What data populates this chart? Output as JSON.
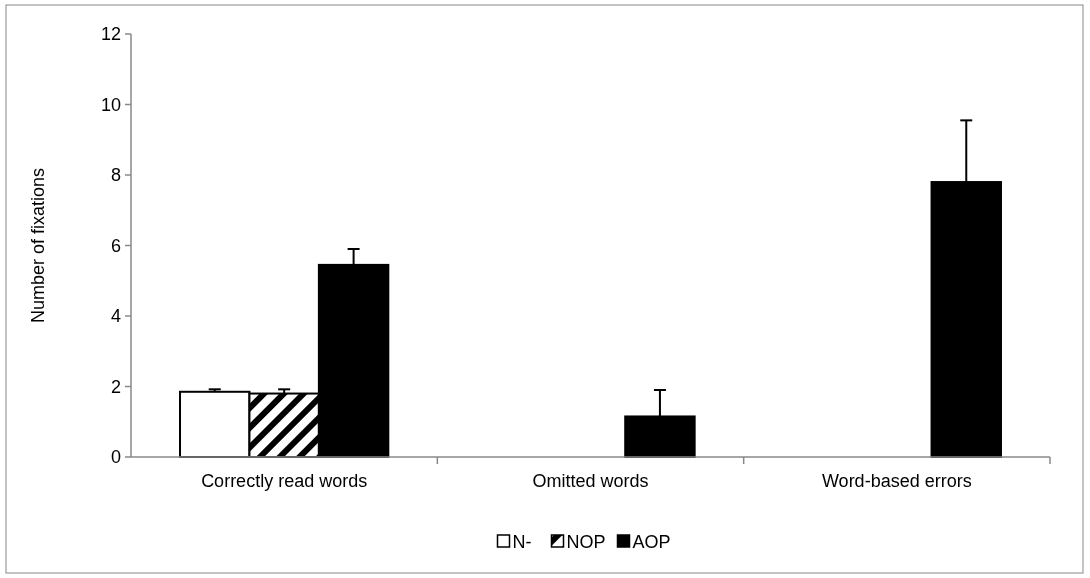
{
  "chart_data": {
    "type": "bar",
    "ylabel": "Number of fixations",
    "categories": [
      "Correctly read words",
      "Omitted words",
      "Word-based errors"
    ],
    "series": [
      {
        "name": "N-",
        "color": "#ffffff",
        "values": [
          1.85,
          null,
          null
        ],
        "errors": [
          [
            1.85,
            1.92
          ],
          null,
          null
        ]
      },
      {
        "name": "NOP",
        "color": "#000000",
        "values": [
          1.8,
          null,
          null
        ],
        "errors": [
          [
            1.8,
            1.92
          ],
          null,
          null
        ]
      },
      {
        "name": "AOP",
        "color": "#000000",
        "values": [
          5.45,
          1.15,
          7.8
        ],
        "errors": [
          [
            5.45,
            5.9
          ],
          [
            1.15,
            1.9
          ],
          [
            7.8,
            9.55
          ]
        ]
      }
    ],
    "ylim": [
      0,
      12
    ],
    "yticks": [
      0,
      2,
      4,
      6,
      8,
      10,
      12
    ],
    "grid": false,
    "legend": "bottom"
  }
}
